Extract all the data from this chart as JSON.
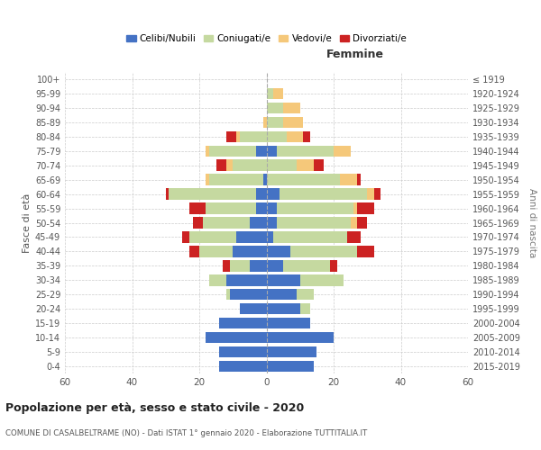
{
  "age_groups": [
    "0-4",
    "5-9",
    "10-14",
    "15-19",
    "20-24",
    "25-29",
    "30-34",
    "35-39",
    "40-44",
    "45-49",
    "50-54",
    "55-59",
    "60-64",
    "65-69",
    "70-74",
    "75-79",
    "80-84",
    "85-89",
    "90-94",
    "95-99",
    "100+"
  ],
  "birth_years": [
    "2015-2019",
    "2010-2014",
    "2005-2009",
    "2000-2004",
    "1995-1999",
    "1990-1994",
    "1985-1989",
    "1980-1984",
    "1975-1979",
    "1970-1974",
    "1965-1969",
    "1960-1964",
    "1955-1959",
    "1950-1954",
    "1945-1949",
    "1940-1944",
    "1935-1939",
    "1930-1934",
    "1925-1929",
    "1920-1924",
    "≤ 1919"
  ],
  "colors": {
    "celibi": "#4472C4",
    "coniugati": "#c5d9a0",
    "vedovi": "#f5c87a",
    "divorziati": "#cc2222"
  },
  "males": {
    "celibi": [
      14,
      14,
      18,
      14,
      8,
      11,
      12,
      5,
      10,
      9,
      5,
      3,
      3,
      1,
      0,
      3,
      0,
      0,
      0,
      0,
      0
    ],
    "coniugati": [
      0,
      0,
      0,
      0,
      0,
      1,
      5,
      6,
      10,
      14,
      14,
      15,
      26,
      16,
      10,
      14,
      8,
      0,
      0,
      0,
      0
    ],
    "vedovi": [
      0,
      0,
      0,
      0,
      0,
      0,
      0,
      0,
      0,
      0,
      0,
      0,
      0,
      1,
      2,
      1,
      1,
      1,
      0,
      0,
      0
    ],
    "divorziati": [
      0,
      0,
      0,
      0,
      0,
      0,
      0,
      2,
      3,
      2,
      3,
      5,
      1,
      0,
      3,
      0,
      3,
      0,
      0,
      0,
      0
    ]
  },
  "females": {
    "nubili": [
      14,
      15,
      20,
      13,
      10,
      9,
      10,
      5,
      7,
      2,
      3,
      3,
      4,
      0,
      0,
      3,
      0,
      0,
      0,
      0,
      0
    ],
    "coniugate": [
      0,
      0,
      0,
      0,
      3,
      5,
      13,
      14,
      20,
      22,
      22,
      23,
      26,
      22,
      9,
      17,
      6,
      5,
      5,
      2,
      0
    ],
    "vedove": [
      0,
      0,
      0,
      0,
      0,
      0,
      0,
      0,
      0,
      0,
      2,
      1,
      2,
      5,
      5,
      5,
      5,
      6,
      5,
      3,
      0
    ],
    "divorziate": [
      0,
      0,
      0,
      0,
      0,
      0,
      0,
      2,
      5,
      4,
      3,
      5,
      2,
      1,
      3,
      0,
      2,
      0,
      0,
      0,
      0
    ]
  },
  "xlim": 60,
  "title": "Popolazione per età, sesso e stato civile - 2020",
  "subtitle": "COMUNE DI CASALBELTRAME (NO) - Dati ISTAT 1° gennaio 2020 - Elaborazione TUTTITALIA.IT",
  "ylabel_left": "Fasce di età",
  "ylabel_right": "Anni di nascita",
  "xlabel_right": "Femmine",
  "legend_labels": [
    "Celibi/Nubili",
    "Coniugati/e",
    "Vedovi/e",
    "Divorziati/e"
  ],
  "background_color": "#ffffff",
  "grid_color": "#cccccc"
}
